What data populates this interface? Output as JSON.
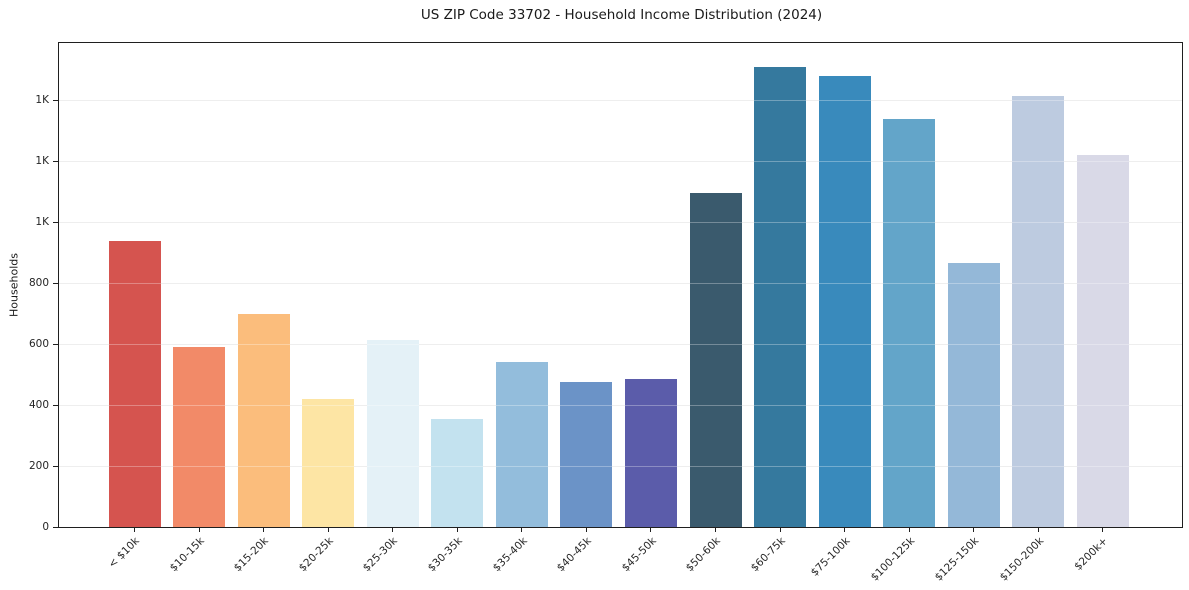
{
  "chart_data": {
    "type": "bar",
    "title": "US ZIP Code 33702 - Household Income Distribution (2024)",
    "xlabel": "",
    "ylabel": "Households",
    "categories": [
      "< $10k",
      "$10-15k",
      "$15-20k",
      "$20-25k",
      "$25-30k",
      "$30-35k",
      "$35-40k",
      "$40-45k",
      "$45-50k",
      "$50-60k",
      "$60-75k",
      "$75-100k",
      "$100-125k",
      "$125-150k",
      "$150-200k",
      "$200k+"
    ],
    "values": [
      940,
      590,
      700,
      420,
      615,
      355,
      540,
      475,
      485,
      1095,
      1510,
      1480,
      1340,
      865,
      1415,
      1220
    ],
    "bar_colors": [
      "#d5544f",
      "#f28a68",
      "#fbbd7c",
      "#fde5a4",
      "#e4f1f7",
      "#c3e2ef",
      "#93bddc",
      "#6b93c7",
      "#5b5caa",
      "#3a5a6d",
      "#35799e",
      "#398abc",
      "#63a5c9",
      "#94b8d8",
      "#bdcbe0",
      "#d9d9e7"
    ],
    "ylim": [
      0,
      1588
    ],
    "ytick_values": [
      0,
      200,
      400,
      600,
      800,
      1000,
      1200,
      1400
    ],
    "ytick_labels": [
      "0",
      "200",
      "400",
      "600",
      "800",
      "1K",
      "1K",
      "1K"
    ],
    "grid": "horizontal",
    "legend_position": "none",
    "x_tick_rotation_deg": 45
  }
}
